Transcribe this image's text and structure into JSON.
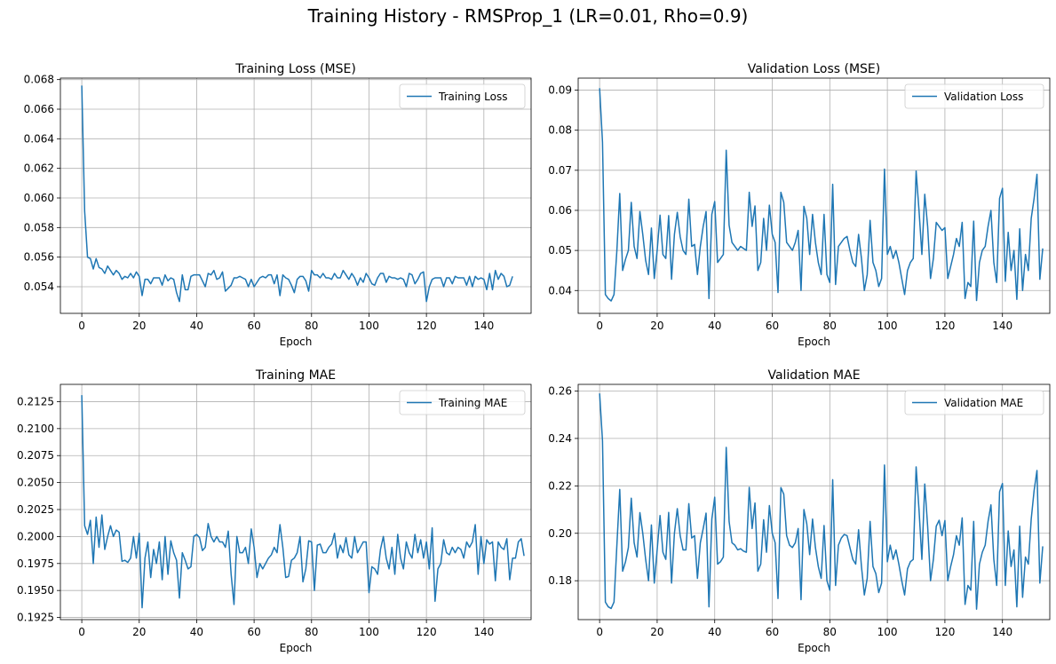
{
  "figure": {
    "title": "Training History - RMSProp_1 (LR=0.01, Rho=0.9)",
    "line_color": "#1f77b4"
  },
  "chart_data": [
    {
      "type": "line",
      "title": "Training Loss (MSE)",
      "xlabel": "Epoch",
      "ylabel": "",
      "xlim": [
        -7.45,
        156.45
      ],
      "ylim": [
        0.0522,
        0.0681
      ],
      "xticks": [
        0,
        20,
        40,
        60,
        80,
        100,
        120,
        140
      ],
      "yticks": [
        0.054,
        0.056,
        0.058,
        0.06,
        0.062,
        0.064,
        0.066,
        0.068
      ],
      "ytick_decimals": 3,
      "grid": true,
      "legend": "upper right",
      "series": [
        {
          "name": "Training Loss",
          "values": [
            0.0676,
            0.0591,
            0.056,
            0.0559,
            0.0552,
            0.0559,
            0.0553,
            0.0552,
            0.0549,
            0.0554,
            0.0551,
            0.0548,
            0.0551,
            0.0549,
            0.0545,
            0.0547,
            0.0546,
            0.0549,
            0.0546,
            0.055,
            0.0547,
            0.0534,
            0.0545,
            0.0545,
            0.0542,
            0.0546,
            0.0546,
            0.0546,
            0.0541,
            0.0548,
            0.0544,
            0.0546,
            0.0545,
            0.0536,
            0.053,
            0.0548,
            0.0538,
            0.0538,
            0.0547,
            0.0548,
            0.0548,
            0.0548,
            0.0544,
            0.054,
            0.0549,
            0.0548,
            0.0551,
            0.0545,
            0.0546,
            0.055,
            0.0537,
            0.0539,
            0.0541,
            0.0546,
            0.0546,
            0.0547,
            0.0546,
            0.0545,
            0.054,
            0.0545,
            0.054,
            0.0543,
            0.0546,
            0.0547,
            0.0546,
            0.0548,
            0.0548,
            0.0542,
            0.0548,
            0.0534,
            0.0548,
            0.0546,
            0.0545,
            0.0541,
            0.0536,
            0.0545,
            0.0547,
            0.0547,
            0.0544,
            0.0537,
            0.0551,
            0.0548,
            0.0548,
            0.0546,
            0.0549,
            0.0546,
            0.0546,
            0.0545,
            0.0549,
            0.0546,
            0.0546,
            0.0551,
            0.0548,
            0.0545,
            0.0549,
            0.0546,
            0.0541,
            0.0546,
            0.0543,
            0.0549,
            0.0546,
            0.0542,
            0.0541,
            0.0546,
            0.0549,
            0.0549,
            0.0543,
            0.0547,
            0.0546,
            0.0546,
            0.0545,
            0.0546,
            0.0545,
            0.054,
            0.0549,
            0.0548,
            0.0542,
            0.0545,
            0.0549,
            0.055,
            0.053,
            0.054,
            0.0545,
            0.0546,
            0.0546,
            0.0546,
            0.054,
            0.0546,
            0.0546,
            0.0542,
            0.0547,
            0.0546,
            0.0546,
            0.0546,
            0.0541,
            0.0547,
            0.054,
            0.0547,
            0.0545,
            0.0546,
            0.0545,
            0.0538,
            0.0549,
            0.0538,
            0.0551,
            0.0545,
            0.0549,
            0.0547,
            0.054,
            0.0541,
            0.0547
          ]
        }
      ]
    },
    {
      "type": "line",
      "title": "Validation Loss (MSE)",
      "xlabel": "Epoch",
      "ylabel": "",
      "xlim": [
        -7.45,
        156.45
      ],
      "ylim": [
        0.0343,
        0.093
      ],
      "xticks": [
        0,
        20,
        40,
        60,
        80,
        100,
        120,
        140
      ],
      "yticks": [
        0.04,
        0.05,
        0.06,
        0.07,
        0.08,
        0.09
      ],
      "ytick_decimals": 2,
      "grid": true,
      "legend": "upper right",
      "series": [
        {
          "name": "Validation Loss",
          "values": [
            0.0905,
            0.077,
            0.039,
            0.038,
            0.0374,
            0.039,
            0.05,
            0.0642,
            0.045,
            0.0478,
            0.05,
            0.062,
            0.051,
            0.048,
            0.0597,
            0.054,
            0.0475,
            0.044,
            0.0556,
            0.043,
            0.05,
            0.0588,
            0.049,
            0.048,
            0.0587,
            0.0428,
            0.054,
            0.0595,
            0.0534,
            0.05,
            0.049,
            0.0628,
            0.051,
            0.0515,
            0.044,
            0.051,
            0.056,
            0.0597,
            0.038,
            0.059,
            0.0622,
            0.047,
            0.048,
            0.049,
            0.075,
            0.0563,
            0.052,
            0.051,
            0.05,
            0.051,
            0.0505,
            0.05,
            0.0645,
            0.056,
            0.0611,
            0.045,
            0.047,
            0.058,
            0.05,
            0.0613,
            0.054,
            0.052,
            0.0395,
            0.0645,
            0.062,
            0.052,
            0.051,
            0.05,
            0.052,
            0.055,
            0.04,
            0.061,
            0.058,
            0.049,
            0.059,
            0.052,
            0.047,
            0.044,
            0.059,
            0.044,
            0.042,
            0.0665,
            0.0415,
            0.051,
            0.052,
            0.053,
            0.0535,
            0.05,
            0.047,
            0.046,
            0.054,
            0.048,
            0.04,
            0.044,
            0.0575,
            0.047,
            0.045,
            0.041,
            0.043,
            0.0703,
            0.049,
            0.051,
            0.048,
            0.05,
            0.047,
            0.043,
            0.039,
            0.045,
            0.047,
            0.048,
            0.0698,
            0.06,
            0.049,
            0.064,
            0.056,
            0.043,
            0.048,
            0.057,
            0.056,
            0.055,
            0.0557,
            0.043,
            0.046,
            0.049,
            0.053,
            0.051,
            0.057,
            0.038,
            0.042,
            0.041,
            0.0573,
            0.0375,
            0.047,
            0.05,
            0.051,
            0.056,
            0.06,
            0.047,
            0.042,
            0.063,
            0.0655,
            0.0423,
            0.0545,
            0.045,
            0.05,
            0.0378,
            0.0554,
            0.04,
            0.049,
            0.045,
            0.058,
            0.063,
            0.069,
            0.0428,
            0.0505
          ]
        }
      ]
    },
    {
      "type": "line",
      "title": "Training MAE",
      "xlabel": "Epoch",
      "ylabel": "",
      "xlim": [
        -7.45,
        156.45
      ],
      "ylim": [
        0.1923,
        0.2141
      ],
      "xticks": [
        0,
        20,
        40,
        60,
        80,
        100,
        120,
        140
      ],
      "yticks": [
        0.1925,
        0.195,
        0.1975,
        0.2,
        0.2025,
        0.205,
        0.2075,
        0.21,
        0.2125
      ],
      "ytick_decimals": 4,
      "grid": true,
      "legend": "upper right",
      "series": [
        {
          "name": "Training MAE",
          "values": [
            0.2131,
            0.201,
            0.2002,
            0.2015,
            0.1975,
            0.2018,
            0.199,
            0.202,
            0.1988,
            0.2,
            0.201,
            0.2,
            0.2006,
            0.2004,
            0.1977,
            0.1978,
            0.1976,
            0.198,
            0.2,
            0.198,
            0.2003,
            0.1934,
            0.198,
            0.1995,
            0.1962,
            0.1988,
            0.1975,
            0.1995,
            0.196,
            0.2,
            0.1965,
            0.1996,
            0.1985,
            0.1978,
            0.1943,
            0.1985,
            0.1978,
            0.197,
            0.1972,
            0.2,
            0.2002,
            0.1999,
            0.1987,
            0.199,
            0.2012,
            0.2,
            0.1995,
            0.2,
            0.1995,
            0.1995,
            0.199,
            0.2005,
            0.1965,
            0.1937,
            0.2,
            0.1985,
            0.1985,
            0.199,
            0.1975,
            0.2007,
            0.199,
            0.1962,
            0.1975,
            0.197,
            0.1975,
            0.198,
            0.1983,
            0.199,
            0.1985,
            0.2011,
            0.199,
            0.1962,
            0.1963,
            0.1978,
            0.198,
            0.1985,
            0.2,
            0.1958,
            0.197,
            0.1996,
            0.1995,
            0.195,
            0.1992,
            0.1993,
            0.1985,
            0.1985,
            0.199,
            0.1993,
            0.2003,
            0.198,
            0.1992,
            0.1985,
            0.1999,
            0.1983,
            0.198,
            0.2,
            0.1985,
            0.199,
            0.1995,
            0.1995,
            0.1948,
            0.1972,
            0.197,
            0.1965,
            0.1988,
            0.2,
            0.198,
            0.197,
            0.199,
            0.1965,
            0.2002,
            0.198,
            0.197,
            0.1995,
            0.1985,
            0.198,
            0.2002,
            0.1985,
            0.1997,
            0.198,
            0.1995,
            0.197,
            0.2008,
            0.194,
            0.197,
            0.1975,
            0.1997,
            0.1985,
            0.1983,
            0.199,
            0.1985,
            0.199,
            0.1988,
            0.198,
            0.1995,
            0.199,
            0.1995,
            0.2011,
            0.1965,
            0.2,
            0.1975,
            0.1997,
            0.1993,
            0.1995,
            0.1959,
            0.1995,
            0.199,
            0.1988,
            0.1998,
            0.196,
            0.198,
            0.198,
            0.1995,
            0.1998,
            0.1982
          ]
        }
      ]
    },
    {
      "type": "line",
      "title": "Validation MAE",
      "xlabel": "Epoch",
      "ylabel": "",
      "xlim": [
        -7.45,
        156.45
      ],
      "ylim": [
        0.1636,
        0.2628
      ],
      "xticks": [
        0,
        20,
        40,
        60,
        80,
        100,
        120,
        140
      ],
      "yticks": [
        0.18,
        0.2,
        0.22,
        0.24,
        0.26
      ],
      "ytick_decimals": 2,
      "grid": true,
      "legend": "upper right",
      "series": [
        {
          "name": "Validation MAE",
          "values": [
            0.259,
            0.239,
            0.171,
            0.169,
            0.1683,
            0.171,
            0.195,
            0.2185,
            0.184,
            0.188,
            0.194,
            0.2148,
            0.196,
            0.19,
            0.2087,
            0.2,
            0.189,
            0.18,
            0.2035,
            0.179,
            0.193,
            0.2075,
            0.192,
            0.189,
            0.2088,
            0.179,
            0.2,
            0.2104,
            0.199,
            0.193,
            0.193,
            0.2125,
            0.198,
            0.199,
            0.181,
            0.196,
            0.202,
            0.2085,
            0.169,
            0.206,
            0.2152,
            0.187,
            0.188,
            0.19,
            0.2362,
            0.205,
            0.196,
            0.195,
            0.193,
            0.1935,
            0.1925,
            0.192,
            0.2194,
            0.202,
            0.2128,
            0.184,
            0.187,
            0.2057,
            0.192,
            0.2117,
            0.2,
            0.196,
            0.1725,
            0.2193,
            0.2165,
            0.199,
            0.195,
            0.194,
            0.196,
            0.202,
            0.172,
            0.21,
            0.204,
            0.191,
            0.206,
            0.194,
            0.186,
            0.181,
            0.2033,
            0.18,
            0.176,
            0.2226,
            0.178,
            0.195,
            0.198,
            0.1995,
            0.199,
            0.194,
            0.189,
            0.187,
            0.2015,
            0.186,
            0.174,
            0.181,
            0.205,
            0.186,
            0.183,
            0.175,
            0.179,
            0.2288,
            0.188,
            0.195,
            0.189,
            0.193,
            0.187,
            0.18,
            0.174,
            0.185,
            0.188,
            0.189,
            0.228,
            0.21,
            0.189,
            0.2208,
            0.203,
            0.18,
            0.189,
            0.203,
            0.2055,
            0.199,
            0.2054,
            0.18,
            0.186,
            0.191,
            0.199,
            0.195,
            0.2065,
            0.17,
            0.178,
            0.176,
            0.205,
            0.168,
            0.187,
            0.192,
            0.195,
            0.205,
            0.212,
            0.189,
            0.178,
            0.2175,
            0.221,
            0.178,
            0.201,
            0.186,
            0.193,
            0.169,
            0.203,
            0.173,
            0.19,
            0.187,
            0.206,
            0.218,
            0.2265,
            0.179,
            0.1945
          ]
        }
      ]
    }
  ]
}
